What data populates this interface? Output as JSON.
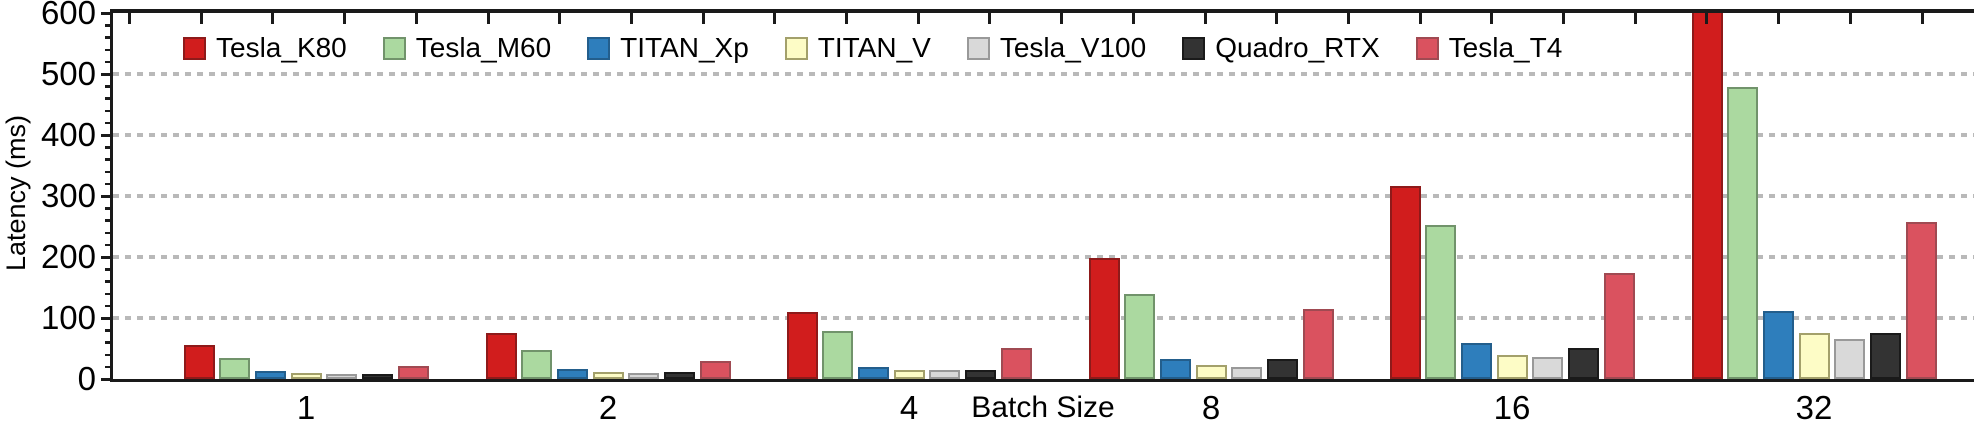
{
  "chart_data": {
    "type": "bar",
    "title": "",
    "xlabel": "Batch Size",
    "ylabel": "Latency (ms)",
    "categories": [
      "1",
      "2",
      "4",
      "8",
      "16",
      "32"
    ],
    "series": [
      {
        "name": "Tesla_K80",
        "fill": "#d11d1d",
        "edge": "#8e1a1a",
        "values": [
          55,
          76,
          110,
          198,
          317,
          620
        ]
      },
      {
        "name": "Tesla_M60",
        "fill": "#abd9a0",
        "edge": "#71936b",
        "values": [
          34,
          47,
          78,
          139,
          253,
          479
        ]
      },
      {
        "name": "TITAN_Xp",
        "fill": "#2e7ebc",
        "edge": "#235e8c",
        "values": [
          13,
          16,
          20,
          33,
          59,
          112
        ]
      },
      {
        "name": "TITAN_V",
        "fill": "#fdfcc6",
        "edge": "#a3a06b",
        "values": [
          10,
          11,
          15,
          23,
          40,
          76
        ]
      },
      {
        "name": "Tesla_V100",
        "fill": "#d9d9d9",
        "edge": "#999999",
        "values": [
          8,
          10,
          14,
          20,
          36,
          66
        ]
      },
      {
        "name": "Quadro_RTX",
        "fill": "#333333",
        "edge": "#1a1a1a",
        "values": [
          9,
          11,
          15,
          33,
          50,
          76
        ]
      },
      {
        "name": "Tesla_T4",
        "fill": "#da525f",
        "edge": "#a04a52",
        "values": [
          22,
          30,
          50,
          114,
          173,
          258
        ]
      }
    ],
    "ylim": [
      0,
      600
    ],
    "yticks": [
      0,
      100,
      200,
      300,
      400,
      500,
      600
    ],
    "y_tick_labels": [
      "0",
      "100",
      "200",
      "300",
      "400",
      "500",
      "600"
    ],
    "y_minor_tick_step": 20,
    "grid": "horizontal dotted gray lines at 100,200,300,400,500",
    "legend_position": "horizontal row, top-left inside plot, no frame",
    "note": "Tesla_K80 bar at batch size 32 exceeds the y-axis maximum and is clipped at 600"
  },
  "colors": {
    "background": "#ffffff",
    "axis": "#1a1a1a",
    "grid": "#b9b9b9",
    "text": "#000000"
  }
}
